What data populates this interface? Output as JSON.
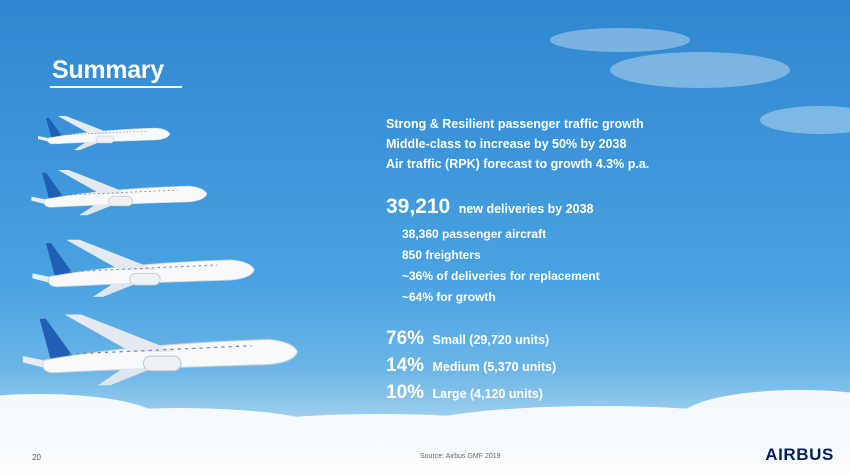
{
  "slide": {
    "title": "Summary",
    "page_number": "20",
    "source": "Source: Airbus GMF 2019",
    "logo": "AIRBUS"
  },
  "intro": [
    "Strong & Resilient passenger traffic growth",
    "Middle-class to increase by 50% by 2038",
    "Air traffic (RPK) forecast to growth 4.3% p.a."
  ],
  "deliveries": {
    "number": "39,210",
    "text": "new deliveries by 2038",
    "details": [
      "38,360 passenger aircraft",
      "850 freighters",
      "~36% of deliveries for replacement",
      "~64% for growth"
    ]
  },
  "market_mix": [
    {
      "pct": "76%",
      "label": "Small (29,720 units)"
    },
    {
      "pct": "14%",
      "label": "Medium (5,370 units)"
    },
    {
      "pct": "10%",
      "label": "Large (4,120 units)"
    }
  ],
  "colors": {
    "sky_top": "#2f87cf",
    "sky_mid": "#4aa3e2",
    "text": "#ffffff",
    "airbus_navy": "#00205b",
    "tail_blue": "#1f5fb5"
  }
}
